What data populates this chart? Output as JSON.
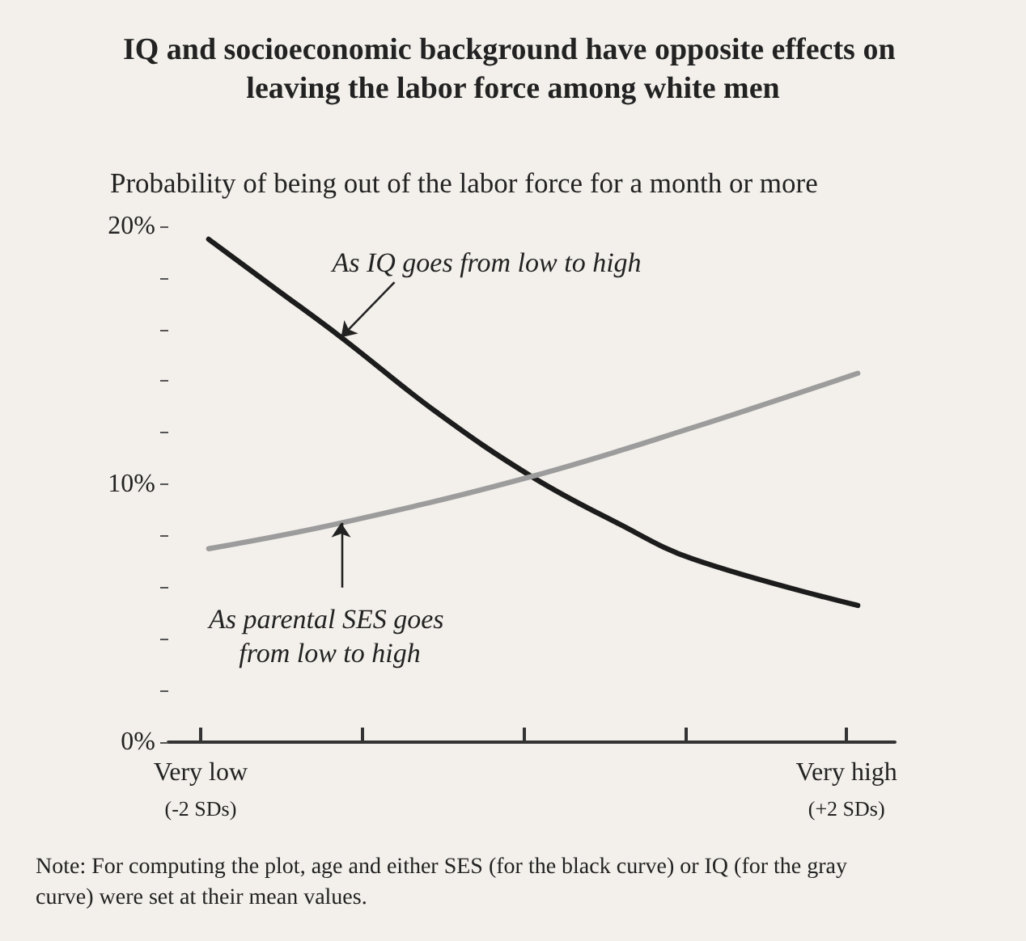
{
  "chart_data": {
    "type": "line",
    "title": "IQ and socioeconomic background have opposite effects on leaving the labor force among white men",
    "ylabel": "Probability of being out of the labor force for a month or more",
    "series": [
      {
        "color": "#1c1c1c",
        "x": [
          -1.95,
          -1.54,
          -1.13,
          -0.54,
          0.05,
          0.58,
          1.05,
          2.07
        ],
        "values": [
          19.5,
          17.6,
          15.7,
          12.8,
          10.3,
          8.5,
          7.1,
          5.3
        ]
      },
      {
        "color": "#9c9c9c",
        "x": [
          -1.95,
          -1.13,
          0.05,
          1.05,
          2.07
        ],
        "values": [
          7.5,
          8.5,
          10.3,
          12.2,
          14.3
        ]
      }
    ],
    "xlim": [
      -2.2,
      2.3
    ],
    "xticks": [
      {
        "value": -2,
        "label": "Very low\n(-2 SDs)"
      },
      {
        "value": -1,
        "label": null
      },
      {
        "value": 0,
        "label": null
      },
      {
        "value": 1,
        "label": null
      },
      {
        "value": 2,
        "label": "Very high\n(+2 SDs)"
      }
    ],
    "ylim": [
      0,
      20
    ],
    "yticks": [
      {
        "value": 0,
        "label": "0%"
      },
      {
        "value": 2,
        "label": null
      },
      {
        "value": 4,
        "label": null
      },
      {
        "value": 6,
        "label": null
      },
      {
        "value": 8,
        "label": null
      },
      {
        "value": 10,
        "label": "10%"
      },
      {
        "value": 12,
        "label": null
      },
      {
        "value": 14,
        "label": null
      },
      {
        "value": 16,
        "label": null
      },
      {
        "value": 18,
        "label": null
      },
      {
        "value": 20,
        "label": "20%"
      }
    ],
    "grid": false,
    "annotations": [
      {
        "text": "As IQ goes from low to high",
        "x": -1.13,
        "y": 15.7
      },
      {
        "text": "As parental SES goes from low to high",
        "x": -1.13,
        "y": 8.5
      },
      "Note: For computing the plot, age and either SES (for the black curve) or IQ (for the gray curve) were set at their mean values."
    ]
  }
}
